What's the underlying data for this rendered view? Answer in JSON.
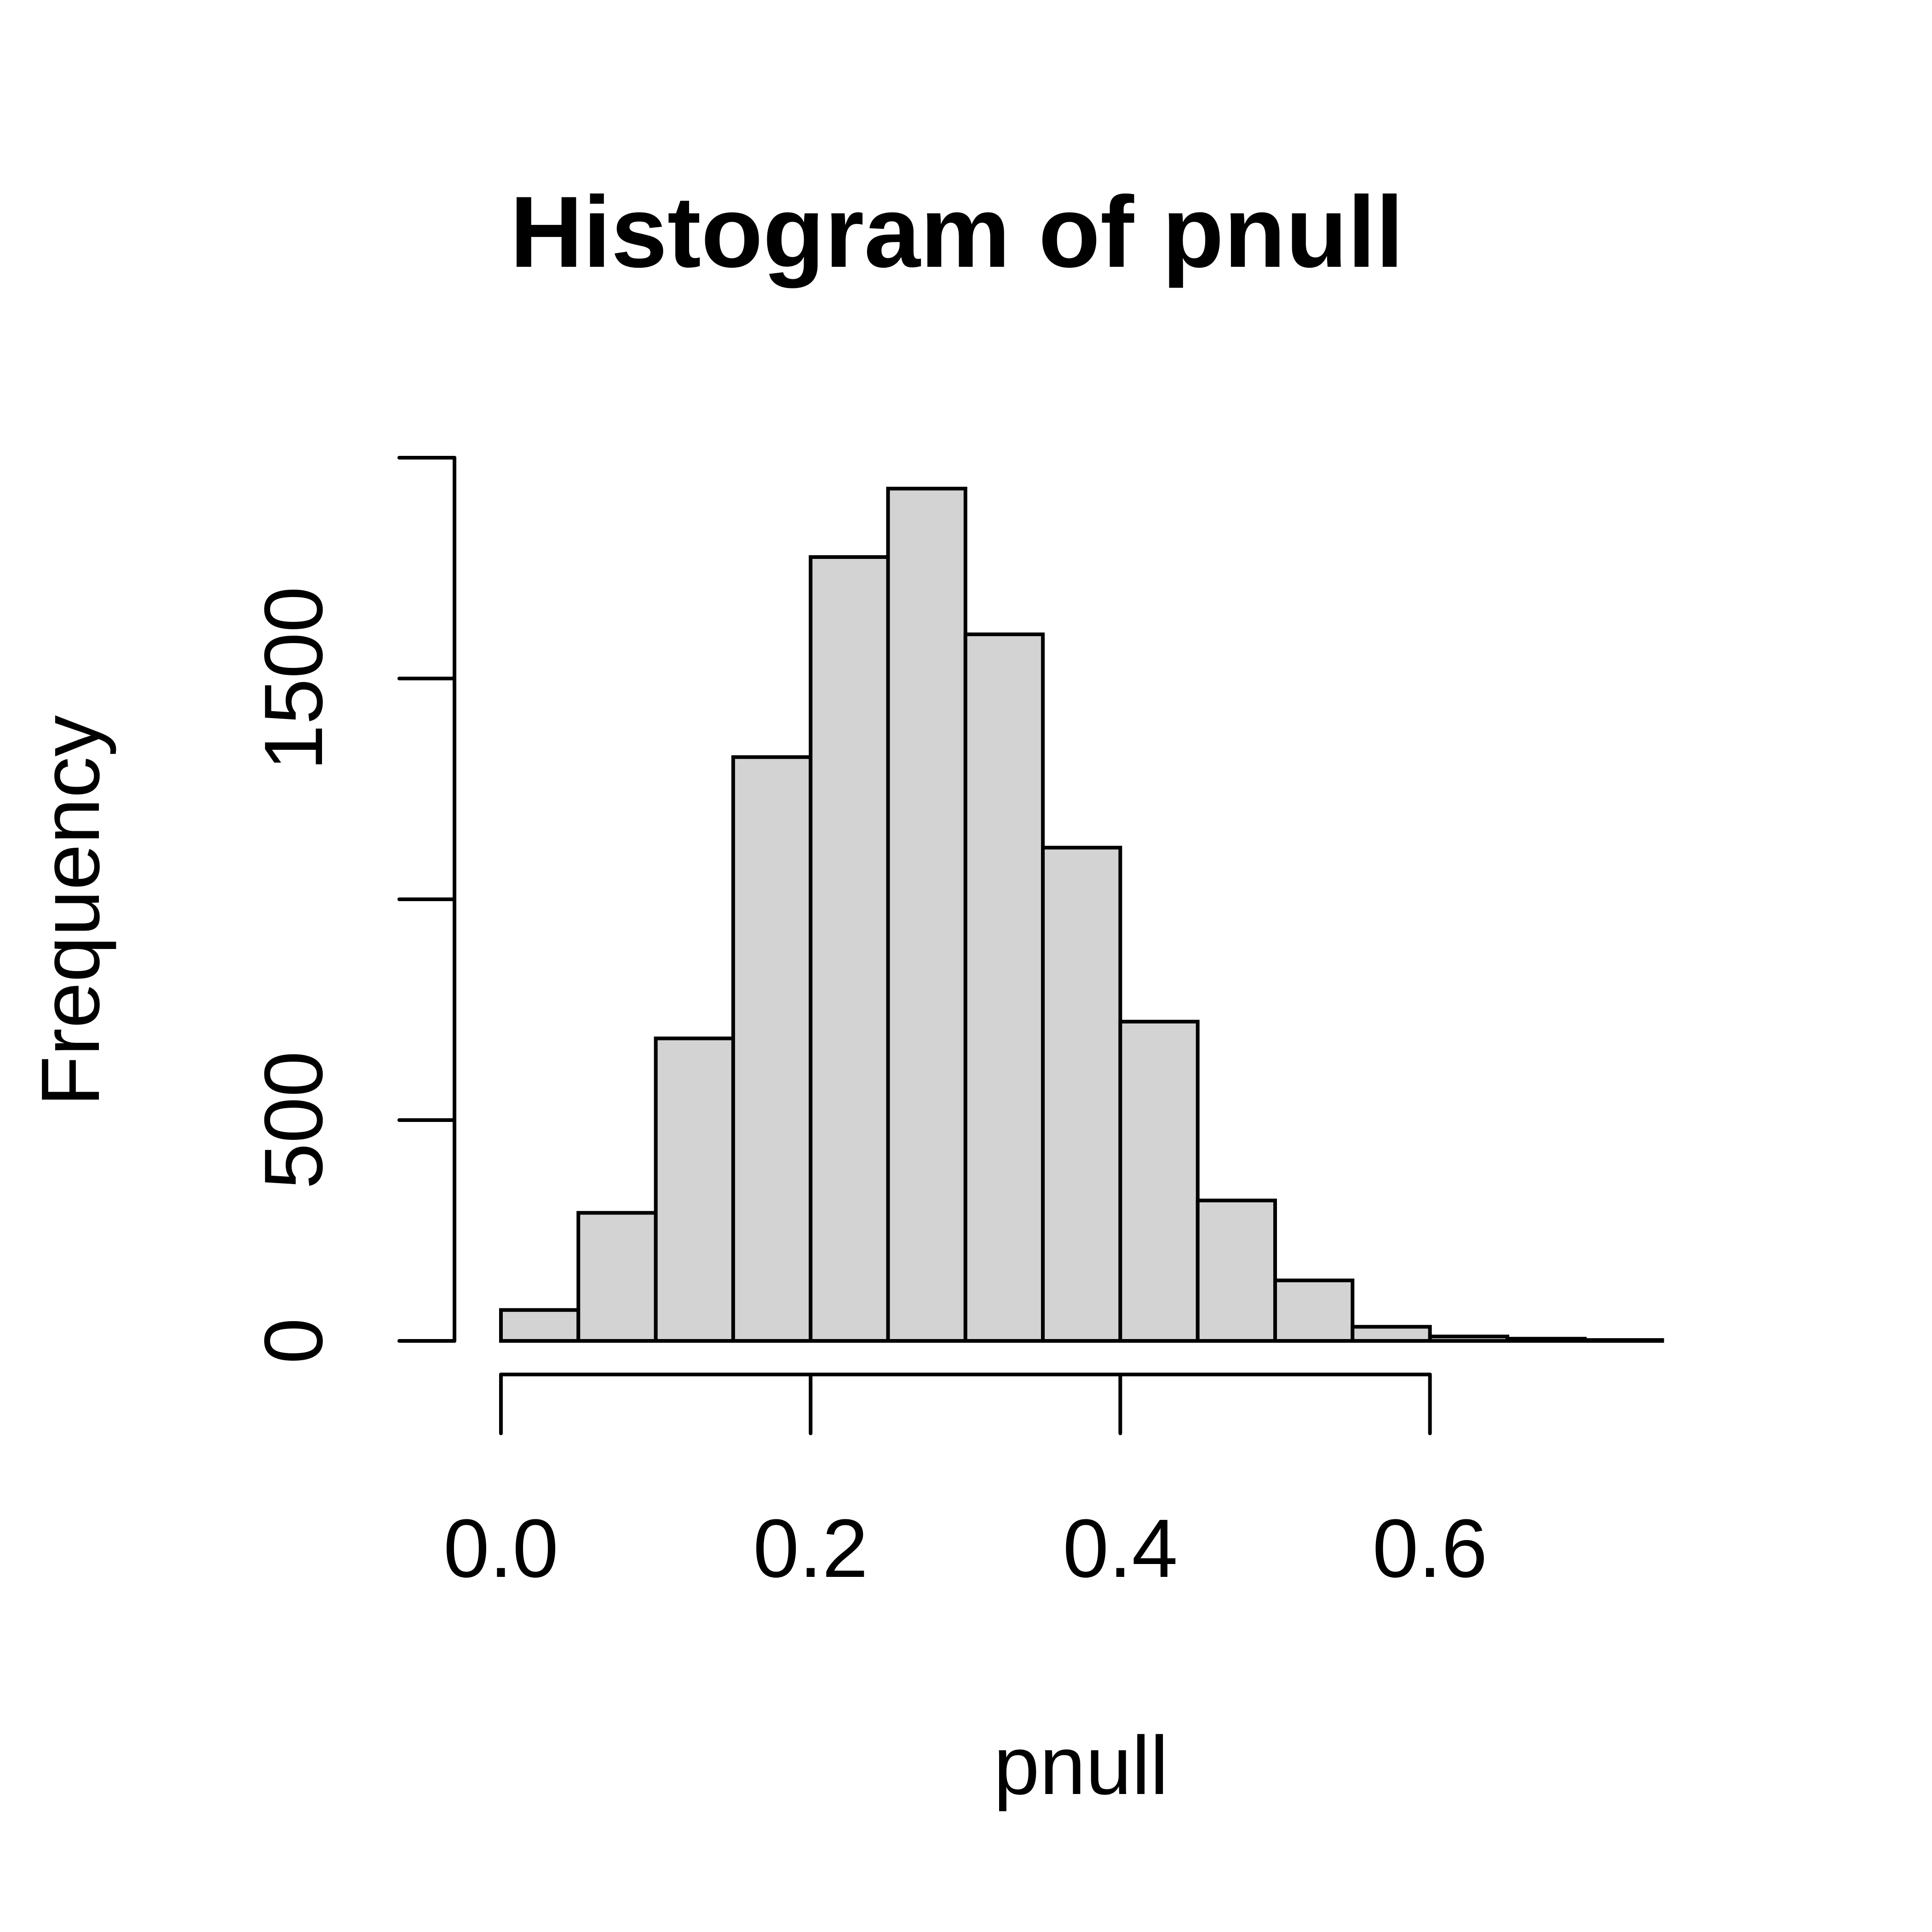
{
  "chart_data": {
    "type": "bar",
    "title": "Histogram of pnull",
    "xlabel": "pnull",
    "ylabel": "Frequency",
    "bin_edges": [
      0.0,
      0.05,
      0.1,
      0.15,
      0.2,
      0.25,
      0.3,
      0.35,
      0.4,
      0.45,
      0.5,
      0.55,
      0.6,
      0.65,
      0.7,
      0.75
    ],
    "values": [
      70,
      290,
      685,
      1322,
      1775,
      1930,
      1600,
      1117,
      723,
      318,
      137,
      32,
      10,
      5,
      2
    ],
    "xlim": [
      0.0,
      0.75
    ],
    "ylim": [
      0,
      2000
    ],
    "x_ticks": [
      0.0,
      0.2,
      0.4,
      0.6
    ],
    "x_tick_labels": [
      "0.0",
      "0.2",
      "0.4",
      "0.6"
    ],
    "y_ticks": [
      0,
      500,
      1000,
      1500,
      2000
    ],
    "y_tick_labels": [
      "0",
      "500",
      "",
      "1500",
      ""
    ],
    "grid": false,
    "legend": "none",
    "colors": {
      "bar_fill": "#d3d3d3",
      "bar_stroke": "#000000",
      "background": "#ffffff"
    }
  }
}
